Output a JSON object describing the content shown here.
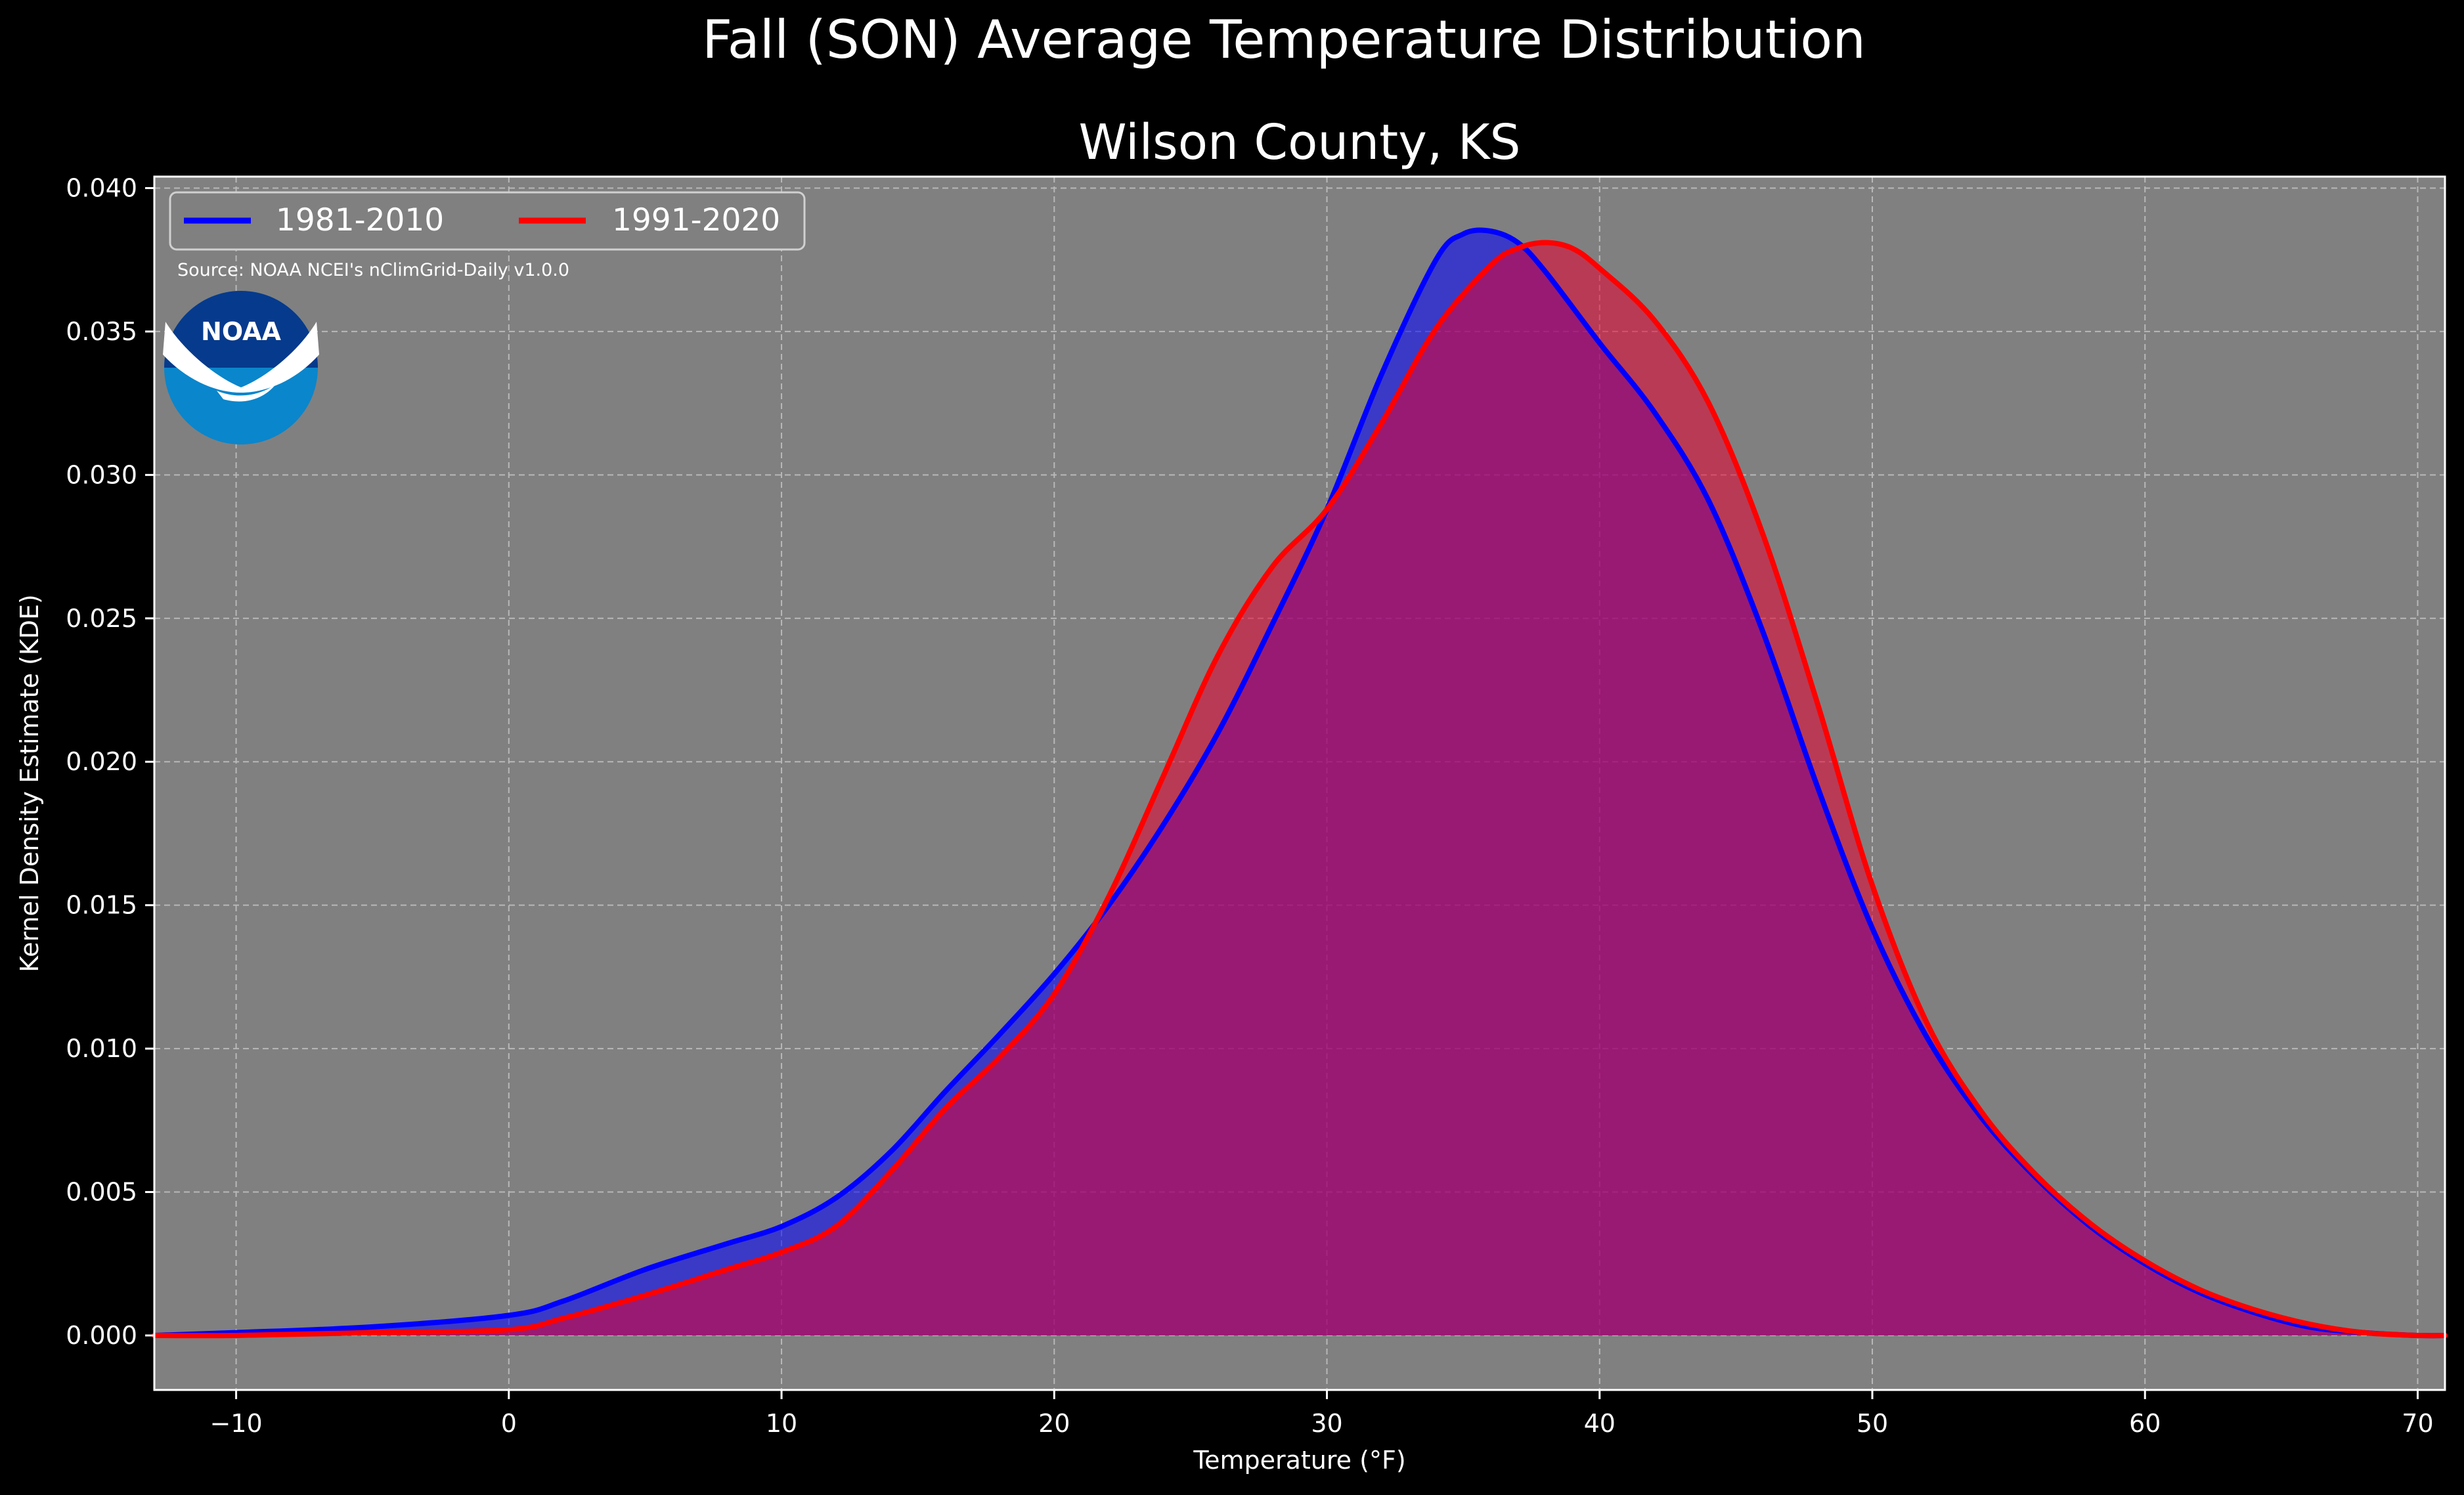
{
  "chart_data": {
    "type": "area",
    "title": "Fall (SON) Average Temperature Distribution",
    "subtitle": "Wilson County, KS",
    "xlabel": "Temperature (°F)",
    "ylabel": "Kernel Density Estimate (KDE)",
    "xlim": [
      -13,
      71
    ],
    "ylim": [
      -0.0019,
      0.0404
    ],
    "xticks": [
      -10,
      0,
      10,
      20,
      30,
      40,
      50,
      60,
      70
    ],
    "xtick_labels": [
      "−10",
      "0",
      "10",
      "20",
      "30",
      "40",
      "50",
      "60",
      "70"
    ],
    "yticks": [
      0.0,
      0.005,
      0.01,
      0.015,
      0.02,
      0.025,
      0.03,
      0.035,
      0.04
    ],
    "ytick_labels": [
      "0.000",
      "0.005",
      "0.010",
      "0.015",
      "0.020",
      "0.025",
      "0.030",
      "0.035",
      "0.040"
    ],
    "grid": true,
    "legend_position": "top-left",
    "source_note": "Source: NOAA NCEI's nClimGrid-Daily v1.0.0",
    "logo_text": "NOAA",
    "colors": {
      "page_bg": "#000000",
      "plot_bg": "#808080"
    },
    "series": [
      {
        "name": "1981-2010",
        "color": "#0000ff",
        "fill": "#0000ff",
        "x": [
          -13,
          -10,
          -5,
          0,
          2,
          5,
          8,
          10,
          12,
          14,
          16,
          18,
          20,
          22,
          24,
          26,
          28,
          30,
          32,
          34,
          35,
          36,
          37,
          38,
          40,
          42,
          44,
          46,
          48,
          50,
          52,
          54,
          56,
          58,
          60,
          62,
          64,
          66,
          68,
          70,
          71
        ],
        "y": [
          0.0,
          0.0001,
          0.0003,
          0.0007,
          0.0012,
          0.0023,
          0.0032,
          0.0038,
          0.0048,
          0.0064,
          0.0085,
          0.0105,
          0.0126,
          0.015,
          0.0178,
          0.021,
          0.0248,
          0.0288,
          0.0335,
          0.0375,
          0.0384,
          0.0385,
          0.0381,
          0.0371,
          0.0346,
          0.0322,
          0.0291,
          0.0245,
          0.0191,
          0.0142,
          0.0104,
          0.0076,
          0.0055,
          0.0038,
          0.0025,
          0.0015,
          0.0008,
          0.0003,
          0.0001,
          0.0,
          0.0
        ]
      },
      {
        "name": "1991-2020",
        "color": "#ff0000",
        "fill": "#e8002f",
        "x": [
          -13,
          -10,
          -5,
          0,
          2,
          5,
          8,
          10,
          12,
          14,
          16,
          18,
          20,
          22,
          24,
          26,
          28,
          30,
          32,
          34,
          36,
          37,
          38,
          39,
          40,
          42,
          44,
          46,
          48,
          50,
          52,
          54,
          56,
          58,
          60,
          62,
          64,
          66,
          68,
          70,
          71
        ],
        "y": [
          0.0,
          0.0,
          0.0001,
          0.0002,
          0.0006,
          0.0014,
          0.0023,
          0.0029,
          0.0038,
          0.0057,
          0.0079,
          0.0097,
          0.0119,
          0.0153,
          0.0195,
          0.0237,
          0.0268,
          0.0288,
          0.0318,
          0.0351,
          0.0373,
          0.0379,
          0.0381,
          0.0379,
          0.0372,
          0.0354,
          0.0325,
          0.0279,
          0.022,
          0.0157,
          0.0109,
          0.0078,
          0.0056,
          0.0039,
          0.0026,
          0.0016,
          0.0009,
          0.0004,
          0.0001,
          0.0,
          0.0
        ]
      }
    ]
  }
}
